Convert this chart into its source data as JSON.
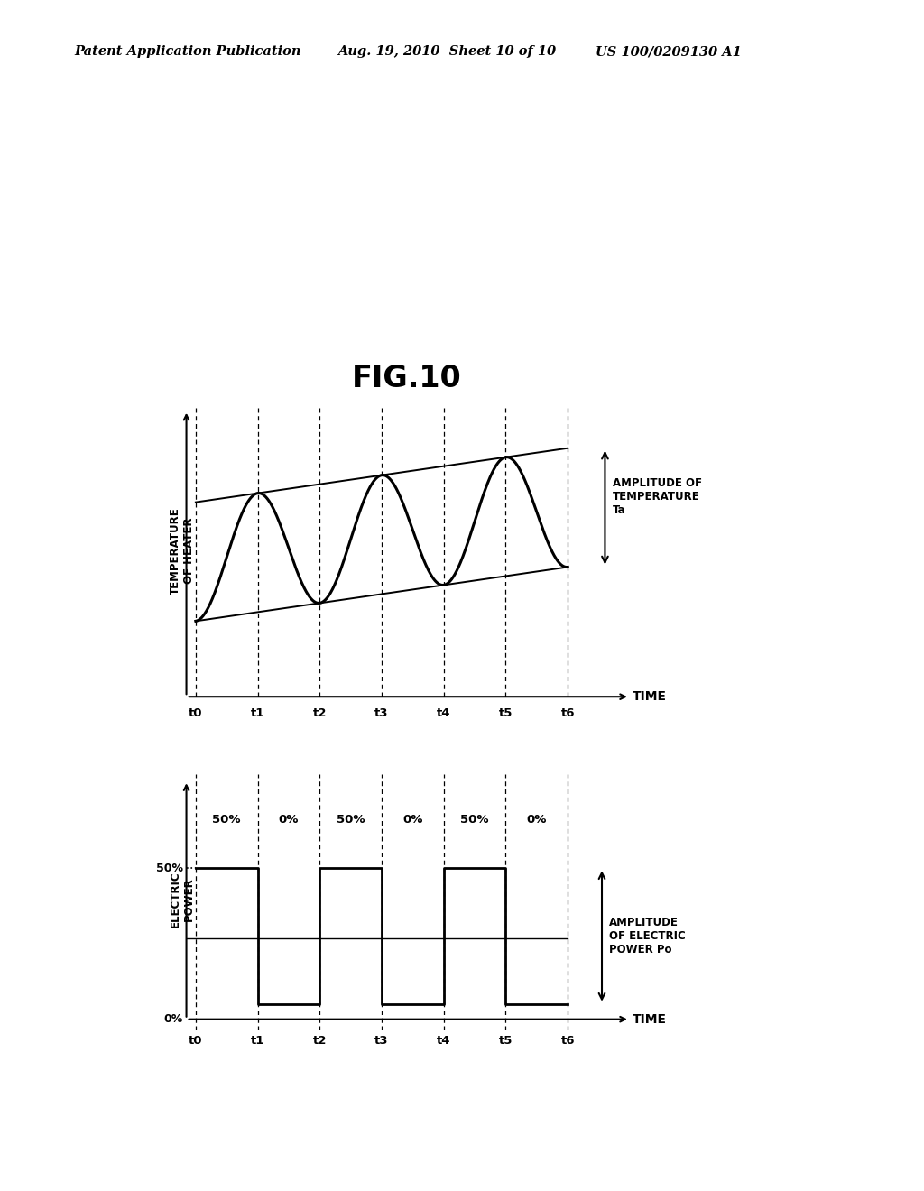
{
  "title": "FIG.10",
  "header_left": "Patent Application Publication",
  "header_center": "Aug. 19, 2010  Sheet 10 of 10",
  "header_right": "US 100/0209130 A1",
  "background_color": "#ffffff",
  "time_labels": [
    "t0",
    "t1",
    "t2",
    "t3",
    "t4",
    "t5",
    "t6"
  ],
  "top_ylabel_line1": "TEMPERATURE",
  "top_ylabel_line2": "OF HEATER",
  "top_xlabel": "TIME",
  "bottom_ylabel_line1": "ELECTRIC",
  "bottom_ylabel_line2": "POWER",
  "bottom_xlabel": "TIME",
  "amplitude_temp_label": "AMPLITUDE OF\nTEMPERATURE\nTa",
  "amplitude_power_label": "AMPLITUDE\nOF ELECTRIC\nPOWER Po",
  "power_labels": [
    "50%",
    "0%",
    "50%",
    "0%",
    "50%",
    "0%"
  ],
  "percent_50_label": "50%",
  "percent_0_label": "0%"
}
